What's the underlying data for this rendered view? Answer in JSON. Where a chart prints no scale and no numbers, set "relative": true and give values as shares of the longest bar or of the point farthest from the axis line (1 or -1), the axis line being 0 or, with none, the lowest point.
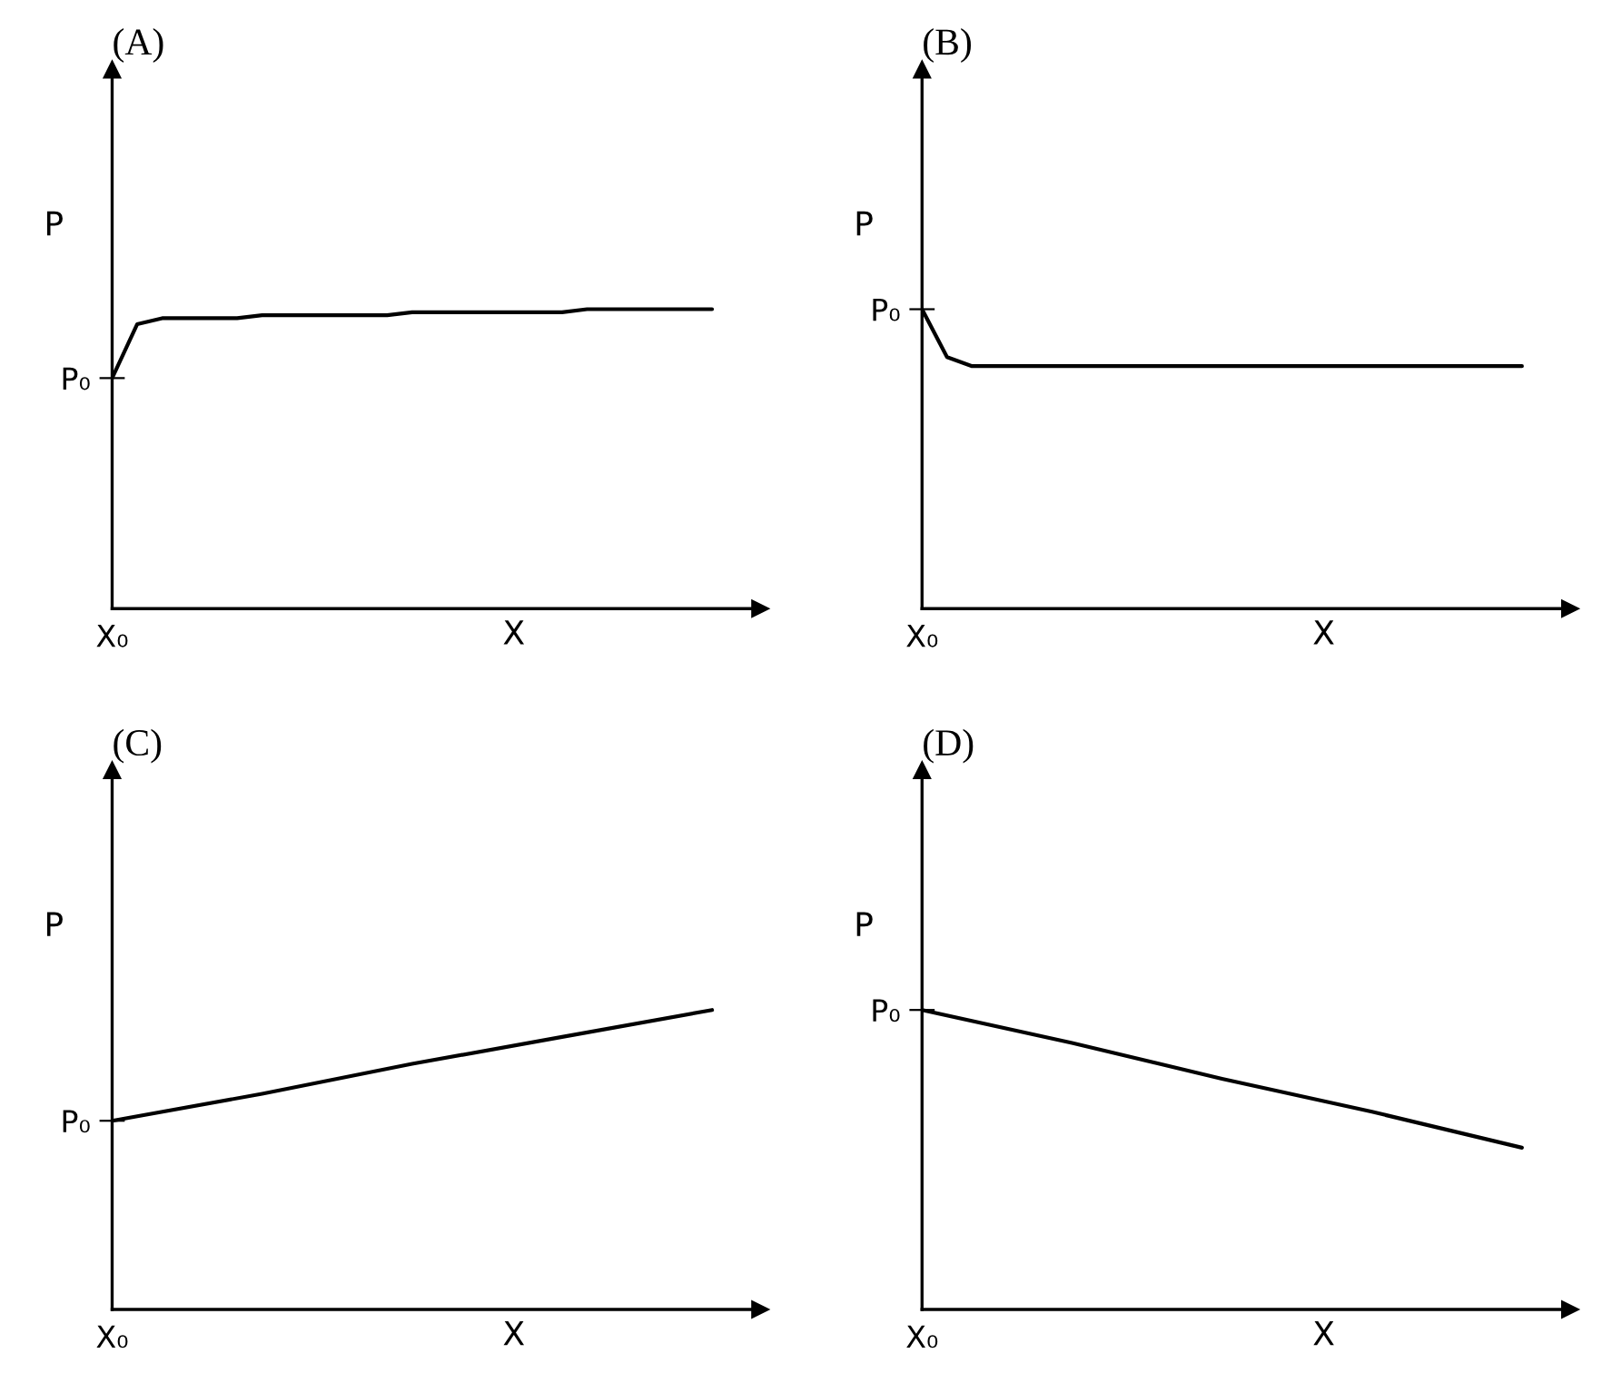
{
  "chart_data": [
    {
      "type": "line",
      "title": "(A)",
      "xlabel": "X",
      "ylabel": "P",
      "relative": true,
      "color": "#000000",
      "categories": [
        null,
        null,
        null,
        null,
        null,
        null,
        null,
        null,
        null,
        null,
        null,
        null,
        null,
        null,
        null,
        null,
        null,
        null,
        null,
        null,
        null,
        null,
        null,
        null,
        null
      ],
      "values": [
        0.77,
        0.95,
        0.97,
        0.97,
        0.97,
        0.97,
        0.98,
        0.98,
        0.98,
        0.98,
        0.98,
        0.98,
        0.99,
        0.99,
        0.99,
        0.99,
        0.99,
        0.99,
        0.99,
        1,
        1,
        1,
        1,
        1,
        1
      ],
      "annotations": [
        "P₀",
        "X₀"
      ]
    },
    {
      "type": "line",
      "title": "(B)",
      "xlabel": "X",
      "ylabel": "P",
      "relative": true,
      "color": "#000000",
      "categories": [
        null,
        null,
        null,
        null,
        null,
        null,
        null,
        null,
        null,
        null,
        null,
        null,
        null,
        null,
        null,
        null,
        null,
        null,
        null,
        null,
        null,
        null,
        null,
        null,
        null
      ],
      "values": [
        1,
        0.84,
        0.81,
        0.81,
        0.81,
        0.81,
        0.81,
        0.81,
        0.81,
        0.81,
        0.81,
        0.81,
        0.81,
        0.81,
        0.81,
        0.81,
        0.81,
        0.81,
        0.81,
        0.81,
        0.81,
        0.81,
        0.81,
        0.81,
        0.81
      ],
      "annotations": [
        "P₀",
        "X₀"
      ]
    },
    {
      "type": "line",
      "title": "(C)",
      "xlabel": "X",
      "ylabel": "P",
      "relative": true,
      "color": "#000000",
      "categories": [
        null,
        null,
        null,
        null,
        null
      ],
      "values": [
        0.63,
        0.72,
        0.82,
        0.91,
        1
      ],
      "annotations": [
        "P₀",
        "X₀"
      ]
    },
    {
      "type": "line",
      "title": "(D)",
      "xlabel": "X",
      "ylabel": "P",
      "relative": true,
      "color": "#000000",
      "categories": [
        null,
        null,
        null,
        null,
        null
      ],
      "values": [
        1,
        0.89,
        0.77,
        0.66,
        0.54
      ],
      "annotations": [
        "P₀",
        "X₀"
      ]
    }
  ]
}
